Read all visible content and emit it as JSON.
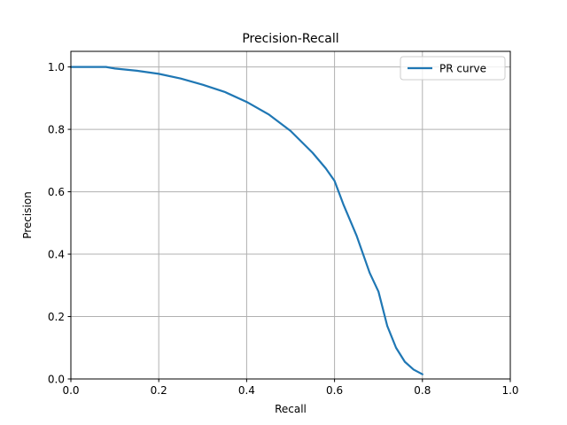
{
  "chart_data": {
    "type": "line",
    "title": "Precision-Recall",
    "xlabel": "Recall",
    "ylabel": "Precision",
    "xlim": [
      0,
      1
    ],
    "ylim": [
      0,
      1.05
    ],
    "grid": true,
    "legend_position": "top-right",
    "x_ticks": [
      "0.0",
      "0.2",
      "0.4",
      "0.6",
      "0.8",
      "1.0"
    ],
    "y_ticks": [
      "0.0",
      "0.2",
      "0.4",
      "0.6",
      "0.8",
      "1.0"
    ],
    "series": [
      {
        "name": "PR curve",
        "color": "#1f77b4",
        "x": [
          0.0,
          0.05,
          0.08,
          0.1,
          0.15,
          0.2,
          0.25,
          0.3,
          0.35,
          0.4,
          0.45,
          0.5,
          0.55,
          0.58,
          0.6,
          0.62,
          0.65,
          0.68,
          0.7,
          0.72,
          0.74,
          0.76,
          0.78,
          0.8
        ],
        "y": [
          1.0,
          1.0,
          1.0,
          0.995,
          0.988,
          0.978,
          0.963,
          0.943,
          0.92,
          0.888,
          0.848,
          0.795,
          0.725,
          0.675,
          0.635,
          0.56,
          0.46,
          0.34,
          0.28,
          0.17,
          0.1,
          0.055,
          0.03,
          0.015
        ]
      }
    ]
  }
}
